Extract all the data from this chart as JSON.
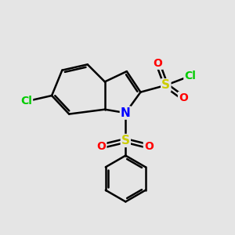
{
  "background_color": "#e5e5e5",
  "bond_color": "#000000",
  "bond_width": 1.8,
  "atom_colors": {
    "N": "#0000ff",
    "S": "#cccc00",
    "O": "#ff0000",
    "Cl": "#00cc00"
  },
  "figsize": [
    3.0,
    3.0
  ],
  "dpi": 100
}
